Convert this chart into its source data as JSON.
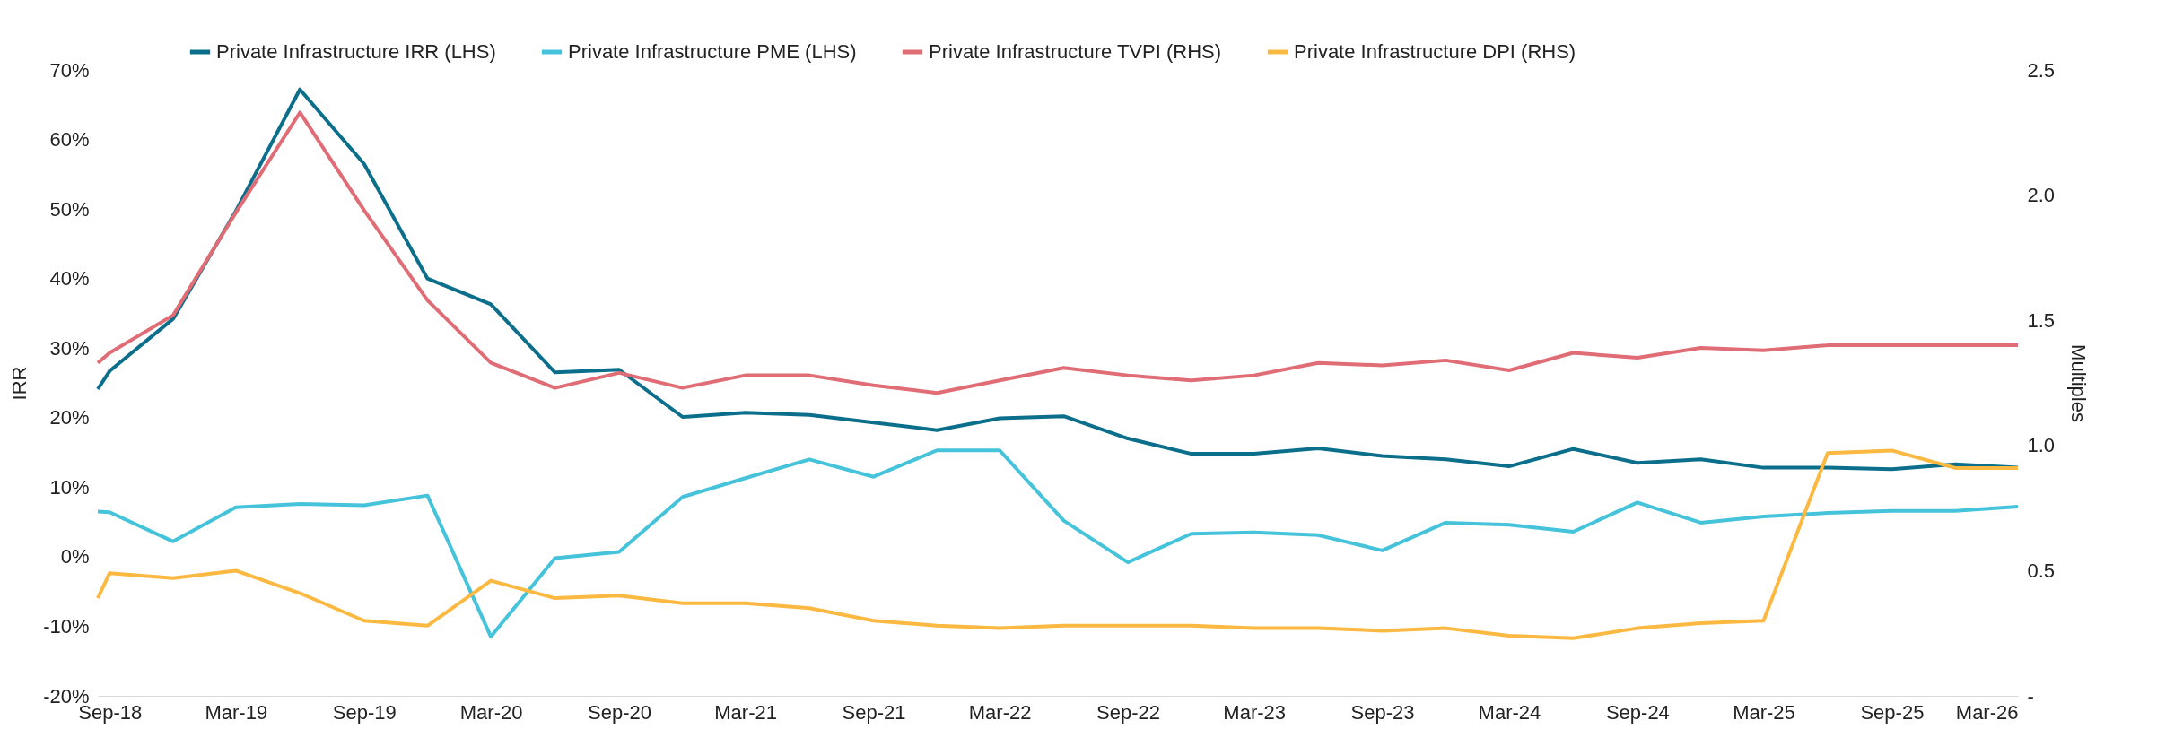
{
  "chart_data": {
    "type": "line",
    "ylabel": "IRR",
    "y2label": "Multiples",
    "legend": "top",
    "grid": false,
    "line_style": "solid",
    "marker": "none",
    "x": [
      "2018-08-15",
      "2018-09",
      "2018-12",
      "2019-03",
      "2019-06",
      "2019-09",
      "2019-12",
      "2020-03",
      "2020-06",
      "2020-09",
      "2020-12",
      "2021-03",
      "2021-06",
      "2021-09",
      "2021-12",
      "2022-03",
      "2022-06",
      "2022-09",
      "2022-12",
      "2023-03",
      "2023-06",
      "2023-09",
      "2023-12",
      "2024-03",
      "2024-06",
      "2024-09",
      "2024-12",
      "2025-03",
      "2025-06",
      "2025-09",
      "2025-12",
      "2026-03"
    ],
    "xlim": [
      "2018-08-15",
      "2026-03"
    ],
    "xticks": [
      {
        "value": "2018-09",
        "label": "Sep-18"
      },
      {
        "value": "2019-03",
        "label": "Mar-19"
      },
      {
        "value": "2019-09",
        "label": "Sep-19"
      },
      {
        "value": "2020-03",
        "label": "Mar-20"
      },
      {
        "value": "2020-09",
        "label": "Sep-20"
      },
      {
        "value": "2021-03",
        "label": "Mar-21"
      },
      {
        "value": "2021-09",
        "label": "Sep-21"
      },
      {
        "value": "2022-03",
        "label": "Mar-22"
      },
      {
        "value": "2022-09",
        "label": "Sep-22"
      },
      {
        "value": "2023-03",
        "label": "Mar-23"
      },
      {
        "value": "2023-09",
        "label": "Sep-23"
      },
      {
        "value": "2024-03",
        "label": "Mar-24"
      },
      {
        "value": "2024-09",
        "label": "Sep-24"
      },
      {
        "value": "2025-03",
        "label": "Mar-25"
      },
      {
        "value": "2025-09",
        "label": "Sep-25"
      },
      {
        "value": "2026-03",
        "label": "Mar-26"
      }
    ],
    "ylim": [
      -20,
      70
    ],
    "yticks": [
      {
        "value": -20,
        "label": "-20%"
      },
      {
        "value": -10,
        "label": "-10%"
      },
      {
        "value": 0,
        "label": "0%"
      },
      {
        "value": 10,
        "label": "10%"
      },
      {
        "value": 20,
        "label": "20%"
      },
      {
        "value": 30,
        "label": "30%"
      },
      {
        "value": 40,
        "label": "40%"
      },
      {
        "value": 50,
        "label": "50%"
      },
      {
        "value": 60,
        "label": "60%"
      },
      {
        "value": 70,
        "label": "70%"
      }
    ],
    "y2lim": [
      0,
      2.5
    ],
    "y2ticks": [
      {
        "value": 0,
        "label": "-"
      },
      0.5,
      {
        "value": 1,
        "label": "1.0"
      },
      1.5,
      {
        "value": 2,
        "label": "2.0"
      },
      2.5
    ],
    "series": [
      {
        "name": "Private Infrastructure IRR (LHS)",
        "color": "#0b6f8c",
        "values": [
          24.1,
          26.7,
          34.2,
          49.7,
          67.2,
          56.5,
          40.0,
          36.3,
          26.5,
          26.9,
          20.1,
          20.7,
          20.4,
          19.3,
          18.2,
          19.9,
          20.2,
          17.0,
          14.8,
          14.8,
          15.6,
          14.5,
          14.0,
          13.0,
          15.5,
          13.5,
          14.0,
          12.8,
          12.8,
          12.6,
          13.3,
          12.8
        ]
      },
      {
        "name": "Private Infrastructure PME (LHS)",
        "color": "#45c3da",
        "values": [
          6.5,
          6.4,
          2.2,
          7.1,
          7.6,
          7.4,
          8.8,
          -11.5,
          -0.2,
          0.7,
          8.6,
          11.3,
          14.0,
          11.5,
          15.3,
          15.3,
          5.2,
          -0.8,
          3.3,
          3.5,
          3.1,
          0.9,
          4.9,
          4.6,
          3.6,
          7.8,
          4.9,
          5.8,
          6.3,
          6.6,
          6.6,
          7.2
        ]
      },
      {
        "name": "Private Infrastructure TVPI (RHS)",
        "color": "#e06c75",
        "axis": "y2",
        "values": [
          1.33,
          1.37,
          1.52,
          1.93,
          2.33,
          1.94,
          1.58,
          1.33,
          1.23,
          1.29,
          1.23,
          1.28,
          1.28,
          1.24,
          1.21,
          1.26,
          1.31,
          1.28,
          1.26,
          1.28,
          1.33,
          1.32,
          1.34,
          1.3,
          1.37,
          1.35,
          1.39,
          1.38,
          1.4,
          1.4,
          1.4,
          1.4
        ]
      },
      {
        "name": "Private Infrastructure DPI (RHS)",
        "color": "#fbb941",
        "axis": "y2",
        "values": [
          0.39,
          0.49,
          0.47,
          0.5,
          0.41,
          0.3,
          0.28,
          0.46,
          0.39,
          0.4,
          0.37,
          0.37,
          0.35,
          0.3,
          0.28,
          0.27,
          0.28,
          0.28,
          0.28,
          0.27,
          0.27,
          0.26,
          0.27,
          0.24,
          0.23,
          0.27,
          0.29,
          0.3,
          0.97,
          0.98,
          0.91,
          0.91
        ]
      }
    ]
  }
}
